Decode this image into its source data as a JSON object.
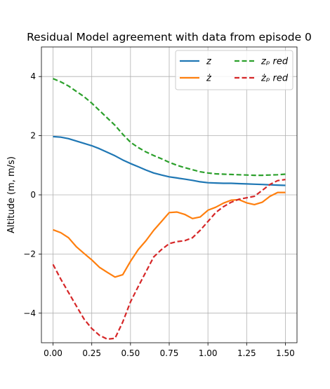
{
  "chart_data": {
    "type": "line",
    "title": "Residual Model agreement with data from episode 0",
    "xlabel": "",
    "ylabel": "Altitude (m, m/s)",
    "xlim": [
      -0.075,
      1.575
    ],
    "ylim": [
      -5.0,
      5.0
    ],
    "xticks": [
      0.0,
      0.25,
      0.5,
      0.75,
      1.0,
      1.25,
      1.5
    ],
    "xtick_labels": [
      "0.00",
      "0.25",
      "0.50",
      "0.75",
      "1.00",
      "1.25",
      "1.50"
    ],
    "yticks": [
      -4,
      -2,
      0,
      2,
      4
    ],
    "ytick_labels": [
      "−4",
      "−2",
      "0",
      "2",
      "4"
    ],
    "grid": true,
    "legend_placement": "top-right",
    "legend_columns": 2,
    "series": [
      {
        "name": "z",
        "color": "#1f77b4",
        "dash": "solid",
        "x": [
          0.0,
          0.05,
          0.1,
          0.15,
          0.2,
          0.25,
          0.3,
          0.35,
          0.4,
          0.45,
          0.5,
          0.55,
          0.6,
          0.65,
          0.7,
          0.75,
          0.8,
          0.85,
          0.9,
          0.95,
          1.0,
          1.05,
          1.1,
          1.15,
          1.2,
          1.25,
          1.3,
          1.35,
          1.4,
          1.45,
          1.5
        ],
        "y": [
          1.97,
          1.95,
          1.9,
          1.82,
          1.74,
          1.66,
          1.56,
          1.44,
          1.32,
          1.18,
          1.06,
          0.95,
          0.84,
          0.74,
          0.67,
          0.61,
          0.57,
          0.53,
          0.49,
          0.44,
          0.41,
          0.4,
          0.39,
          0.39,
          0.38,
          0.37,
          0.36,
          0.35,
          0.34,
          0.33,
          0.32
        ]
      },
      {
        "name": "ż",
        "color": "#ff7f0e",
        "dash": "solid",
        "x": [
          0.0,
          0.05,
          0.1,
          0.15,
          0.2,
          0.25,
          0.3,
          0.35,
          0.4,
          0.45,
          0.5,
          0.55,
          0.6,
          0.65,
          0.7,
          0.75,
          0.8,
          0.85,
          0.9,
          0.95,
          1.0,
          1.05,
          1.1,
          1.15,
          1.2,
          1.25,
          1.3,
          1.35,
          1.4,
          1.45,
          1.5
        ],
        "y": [
          -1.18,
          -1.28,
          -1.45,
          -1.75,
          -1.98,
          -2.2,
          -2.45,
          -2.62,
          -2.78,
          -2.7,
          -2.25,
          -1.85,
          -1.55,
          -1.2,
          -0.9,
          -0.6,
          -0.58,
          -0.66,
          -0.8,
          -0.75,
          -0.52,
          -0.42,
          -0.28,
          -0.18,
          -0.16,
          -0.27,
          -0.33,
          -0.25,
          -0.05,
          0.08,
          0.08
        ]
      },
      {
        "name": "zₚ red",
        "color": "#2ca02c",
        "dash": "dashed",
        "x": [
          0.0,
          0.05,
          0.1,
          0.15,
          0.2,
          0.25,
          0.3,
          0.35,
          0.4,
          0.45,
          0.5,
          0.55,
          0.6,
          0.65,
          0.7,
          0.75,
          0.8,
          0.85,
          0.9,
          0.95,
          1.0,
          1.05,
          1.1,
          1.15,
          1.2,
          1.25,
          1.3,
          1.35,
          1.4,
          1.45,
          1.5
        ],
        "y": [
          3.93,
          3.82,
          3.68,
          3.5,
          3.32,
          3.1,
          2.85,
          2.6,
          2.35,
          2.05,
          1.78,
          1.6,
          1.45,
          1.33,
          1.22,
          1.1,
          1.0,
          0.92,
          0.85,
          0.78,
          0.74,
          0.71,
          0.7,
          0.69,
          0.68,
          0.67,
          0.66,
          0.66,
          0.67,
          0.68,
          0.7
        ]
      },
      {
        "name": "żₚ red",
        "color": "#d62728",
        "dash": "dashed",
        "x": [
          0.0,
          0.05,
          0.1,
          0.15,
          0.2,
          0.25,
          0.3,
          0.35,
          0.4,
          0.45,
          0.5,
          0.55,
          0.6,
          0.65,
          0.7,
          0.75,
          0.8,
          0.85,
          0.9,
          0.95,
          1.0,
          1.05,
          1.1,
          1.15,
          1.2,
          1.25,
          1.3,
          1.35,
          1.4,
          1.45,
          1.5
        ],
        "y": [
          -2.35,
          -2.85,
          -3.3,
          -3.75,
          -4.2,
          -4.52,
          -4.75,
          -4.88,
          -4.85,
          -4.3,
          -3.62,
          -3.1,
          -2.6,
          -2.1,
          -1.85,
          -1.65,
          -1.58,
          -1.55,
          -1.45,
          -1.2,
          -0.9,
          -0.6,
          -0.4,
          -0.25,
          -0.15,
          -0.1,
          -0.05,
          0.15,
          0.35,
          0.48,
          0.52
        ]
      }
    ]
  }
}
